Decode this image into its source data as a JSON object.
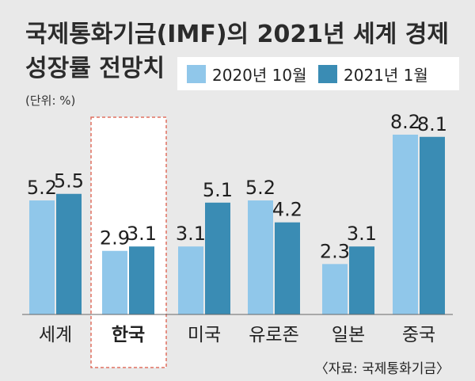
{
  "title_line1": "국제통화기금(IMF)의 2021년 세계 경제",
  "title_line2": "성장률 전망치",
  "unit": "(단위: %)",
  "source": "〈자료: 국제통화기금〉",
  "highlight_category": "한국",
  "chart_data": {
    "type": "bar",
    "categories": [
      "세계",
      "한국",
      "미국",
      "유로존",
      "일본",
      "중국"
    ],
    "series": [
      {
        "name": "2020년 10월",
        "color": "#90c7ea",
        "values": [
          5.2,
          2.9,
          3.1,
          5.2,
          2.3,
          8.2
        ],
        "labels": [
          "5.2",
          "2.9",
          "3.1",
          "5.2",
          "2.3",
          "8.2"
        ]
      },
      {
        "name": "2021년 1월",
        "color": "#3a8cb4",
        "values": [
          5.5,
          3.1,
          5.1,
          4.2,
          3.1,
          8.1
        ],
        "labels": [
          "5.5",
          "3.1",
          "5.1",
          "4.2",
          "3.1",
          "8.1"
        ]
      }
    ],
    "ylim": [
      0,
      8.2
    ],
    "legend_position": "top-right",
    "grid": false
  }
}
